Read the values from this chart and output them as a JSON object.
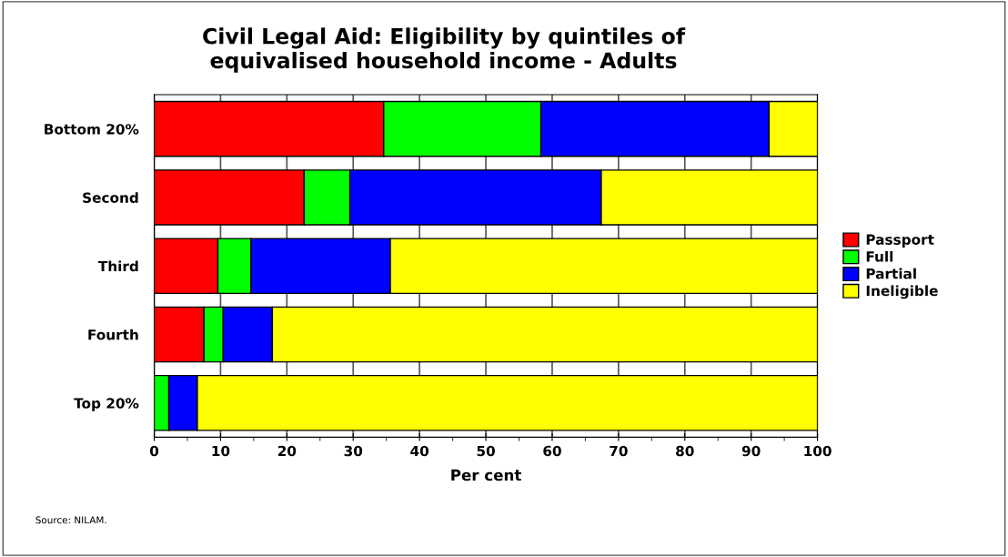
{
  "chart_data": {
    "type": "bar",
    "orientation": "horizontal",
    "stacked": true,
    "title": "Civil Legal Aid: Eligibility by quintiles of\nequivalised household income - Adults",
    "xlabel": "Per cent",
    "categories": [
      "Bottom 20%",
      "Second",
      "Third",
      "Fourth",
      "Top 20%"
    ],
    "series": [
      {
        "name": "Passport",
        "color": "#ff0000",
        "values": [
          34.6,
          22.6,
          9.6,
          7.5,
          0
        ]
      },
      {
        "name": "Full",
        "color": "#00ff00",
        "values": [
          23.7,
          6.9,
          5.0,
          2.9,
          2.2
        ]
      },
      {
        "name": "Partial",
        "color": "#0000ff",
        "values": [
          34.4,
          37.9,
          21.0,
          7.4,
          4.3
        ]
      },
      {
        "name": "Ineligible",
        "color": "#ffff00",
        "values": [
          7.3,
          32.6,
          64.4,
          82.2,
          93.5
        ]
      }
    ],
    "xlim": [
      0,
      100
    ],
    "xticks": [
      0,
      {
        "value": 5,
        "label": null
      },
      10,
      {
        "value": 15,
        "label": null
      },
      20,
      {
        "value": 25,
        "label": null
      },
      30,
      {
        "value": 35,
        "label": null
      },
      40,
      {
        "value": 45,
        "label": null
      },
      50,
      {
        "value": 55,
        "label": null
      },
      60,
      {
        "value": 65,
        "label": null
      },
      70,
      {
        "value": 75,
        "label": null
      },
      80,
      {
        "value": 85,
        "label": null
      },
      90,
      {
        "value": 95,
        "label": null
      },
      100
    ],
    "grid": "x",
    "legend": "right",
    "annotations": [
      "Source: NILAM."
    ]
  }
}
